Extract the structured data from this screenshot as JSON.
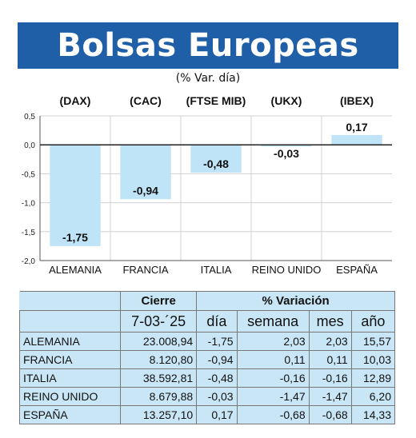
{
  "header": {
    "title": "Bolsas Europeas",
    "subtitle": "(% Var. día)"
  },
  "chart_data": {
    "type": "bar",
    "tickers": [
      "(DAX)",
      "(CAC)",
      "(FTSE MIB)",
      "(UKX)",
      "(IBEX)"
    ],
    "categories": [
      "ALEMANIA",
      "FRANCIA",
      "ITALIA",
      "REINO UNIDO",
      "ESPAÑA"
    ],
    "values": [
      -1.75,
      -0.94,
      -0.48,
      -0.03,
      0.17
    ],
    "value_labels": [
      "-1,75",
      "-0,94",
      "-0,48",
      "-0,03",
      "0,17"
    ],
    "ylim": [
      -2.0,
      0.5
    ],
    "yticks": [
      0.5,
      0.0,
      -0.5,
      -1.0,
      -1.5,
      -2.0
    ],
    "ytick_labels": [
      "0,5",
      "0,0",
      "-0,5",
      "-1,0",
      "-1,5",
      "-2,0"
    ],
    "grid": true,
    "bar_color": "#bfe3f7"
  },
  "table": {
    "header_cierre": "Cierre",
    "header_variacion": "% Variación",
    "date": "7-03-´25",
    "col_dia": "día",
    "col_semana": "semana",
    "col_mes": "mes",
    "col_anio": "año",
    "rows": [
      {
        "country": "ALEMANIA",
        "cierre": "23.008,94",
        "dia": "-1,75",
        "semana": "2,03",
        "mes": "2,03",
        "anio": "15,57"
      },
      {
        "country": "FRANCIA",
        "cierre": "8.120,80",
        "dia": "-0,94",
        "semana": "0,11",
        "mes": "0,11",
        "anio": "10,03"
      },
      {
        "country": "ITALIA",
        "cierre": "38.592,81",
        "dia": "-0,48",
        "semana": "-0,16",
        "mes": "-0,16",
        "anio": "12,89"
      },
      {
        "country": "REINO UNIDO",
        "cierre": "8.679,88",
        "dia": "-0,03",
        "semana": "-1,47",
        "mes": "-1,47",
        "anio": "6,20"
      },
      {
        "country": "ESPAÑA",
        "cierre": "13.257,10",
        "dia": "0,17",
        "semana": "-0,68",
        "mes": "-0,68",
        "anio": "14,33"
      }
    ]
  }
}
